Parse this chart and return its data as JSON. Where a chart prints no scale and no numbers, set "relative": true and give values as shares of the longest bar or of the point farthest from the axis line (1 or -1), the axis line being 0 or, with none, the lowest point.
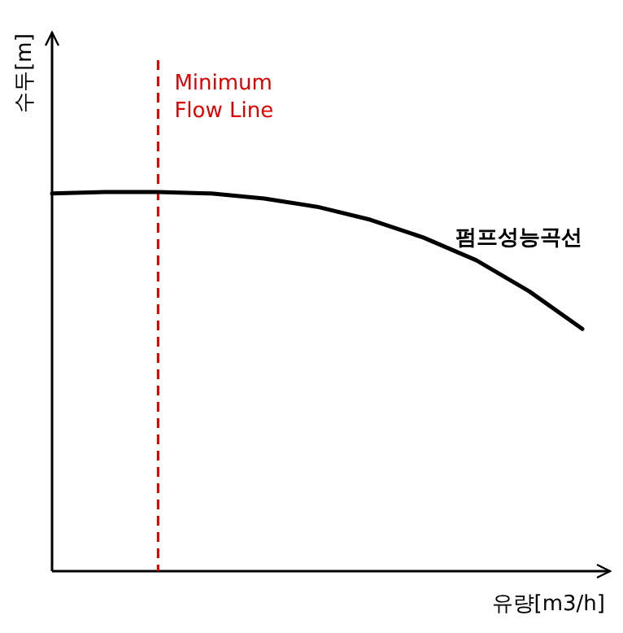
{
  "chart_data": {
    "type": "line",
    "relative": true,
    "xlabel": "유량[m3/h]",
    "ylabel": "수두[m]",
    "categories": [
      null,
      null,
      null,
      null,
      null,
      null,
      null,
      null,
      null,
      null,
      null
    ],
    "series": [
      {
        "name": "펌프성능곡선",
        "color": "#000000",
        "values": [
          0.996,
          1,
          1,
          0.996,
          0.983,
          0.961,
          0.927,
          0.88,
          0.82,
          0.738,
          0.639
        ]
      }
    ],
    "annotations": [
      "Minimum\nFlow Line"
    ],
    "grid": false,
    "marker": "none",
    "line_style": "solid"
  }
}
